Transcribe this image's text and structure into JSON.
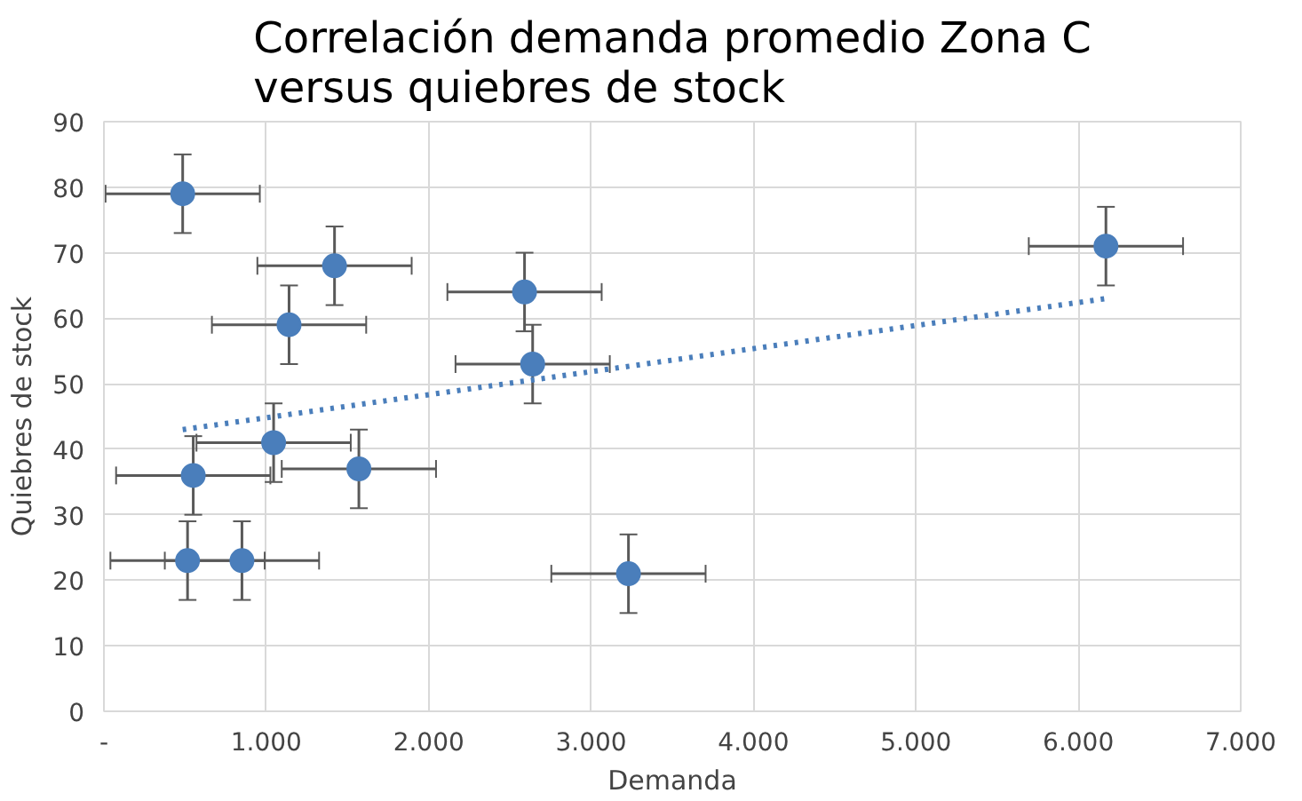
{
  "chart_data": {
    "type": "scatter",
    "title": "Correlación demanda promedio Zona C\nversus quiebres de stock",
    "xlabel": "Demanda",
    "ylabel": "Quiebres de stock",
    "xlim": [
      0,
      7000
    ],
    "xticks": [
      {
        "value": 0,
        "label": "-"
      },
      {
        "value": 1000,
        "label": "1.000"
      },
      {
        "value": 2000,
        "label": "2.000"
      },
      {
        "value": 3000,
        "label": "3.000"
      },
      {
        "value": 4000,
        "label": "4.000"
      },
      {
        "value": 5000,
        "label": "5.000"
      },
      {
        "value": 6000,
        "label": "6.000"
      },
      {
        "value": 7000,
        "label": "7.000"
      }
    ],
    "ylim": [
      0,
      90
    ],
    "yticks": [
      0,
      10,
      20,
      30,
      40,
      50,
      60,
      70,
      80,
      90
    ],
    "grid": true,
    "series": [
      {
        "color": "#4a7ebb",
        "marker": "circle",
        "x": [
          485,
          1420,
          2590,
          1140,
          2640,
          1045,
          550,
          1570,
          515,
          850,
          3230,
          6170
        ],
        "values": [
          79,
          68,
          64,
          59,
          53,
          41,
          36,
          37,
          23,
          23,
          21,
          71
        ],
        "errors": [
          6,
          6,
          6,
          6,
          6,
          6,
          6,
          6,
          6,
          6,
          6,
          6
        ],
        "xerrors": [
          475,
          475,
          475,
          475,
          475,
          475,
          475,
          475,
          475,
          475,
          475,
          475
        ]
      },
      {
        "type": "line",
        "color": "#4a7ebb",
        "line_style": "dotted",
        "marker": "none",
        "x": [
          485,
          6170
        ],
        "values": [
          43,
          63
        ]
      }
    ]
  }
}
